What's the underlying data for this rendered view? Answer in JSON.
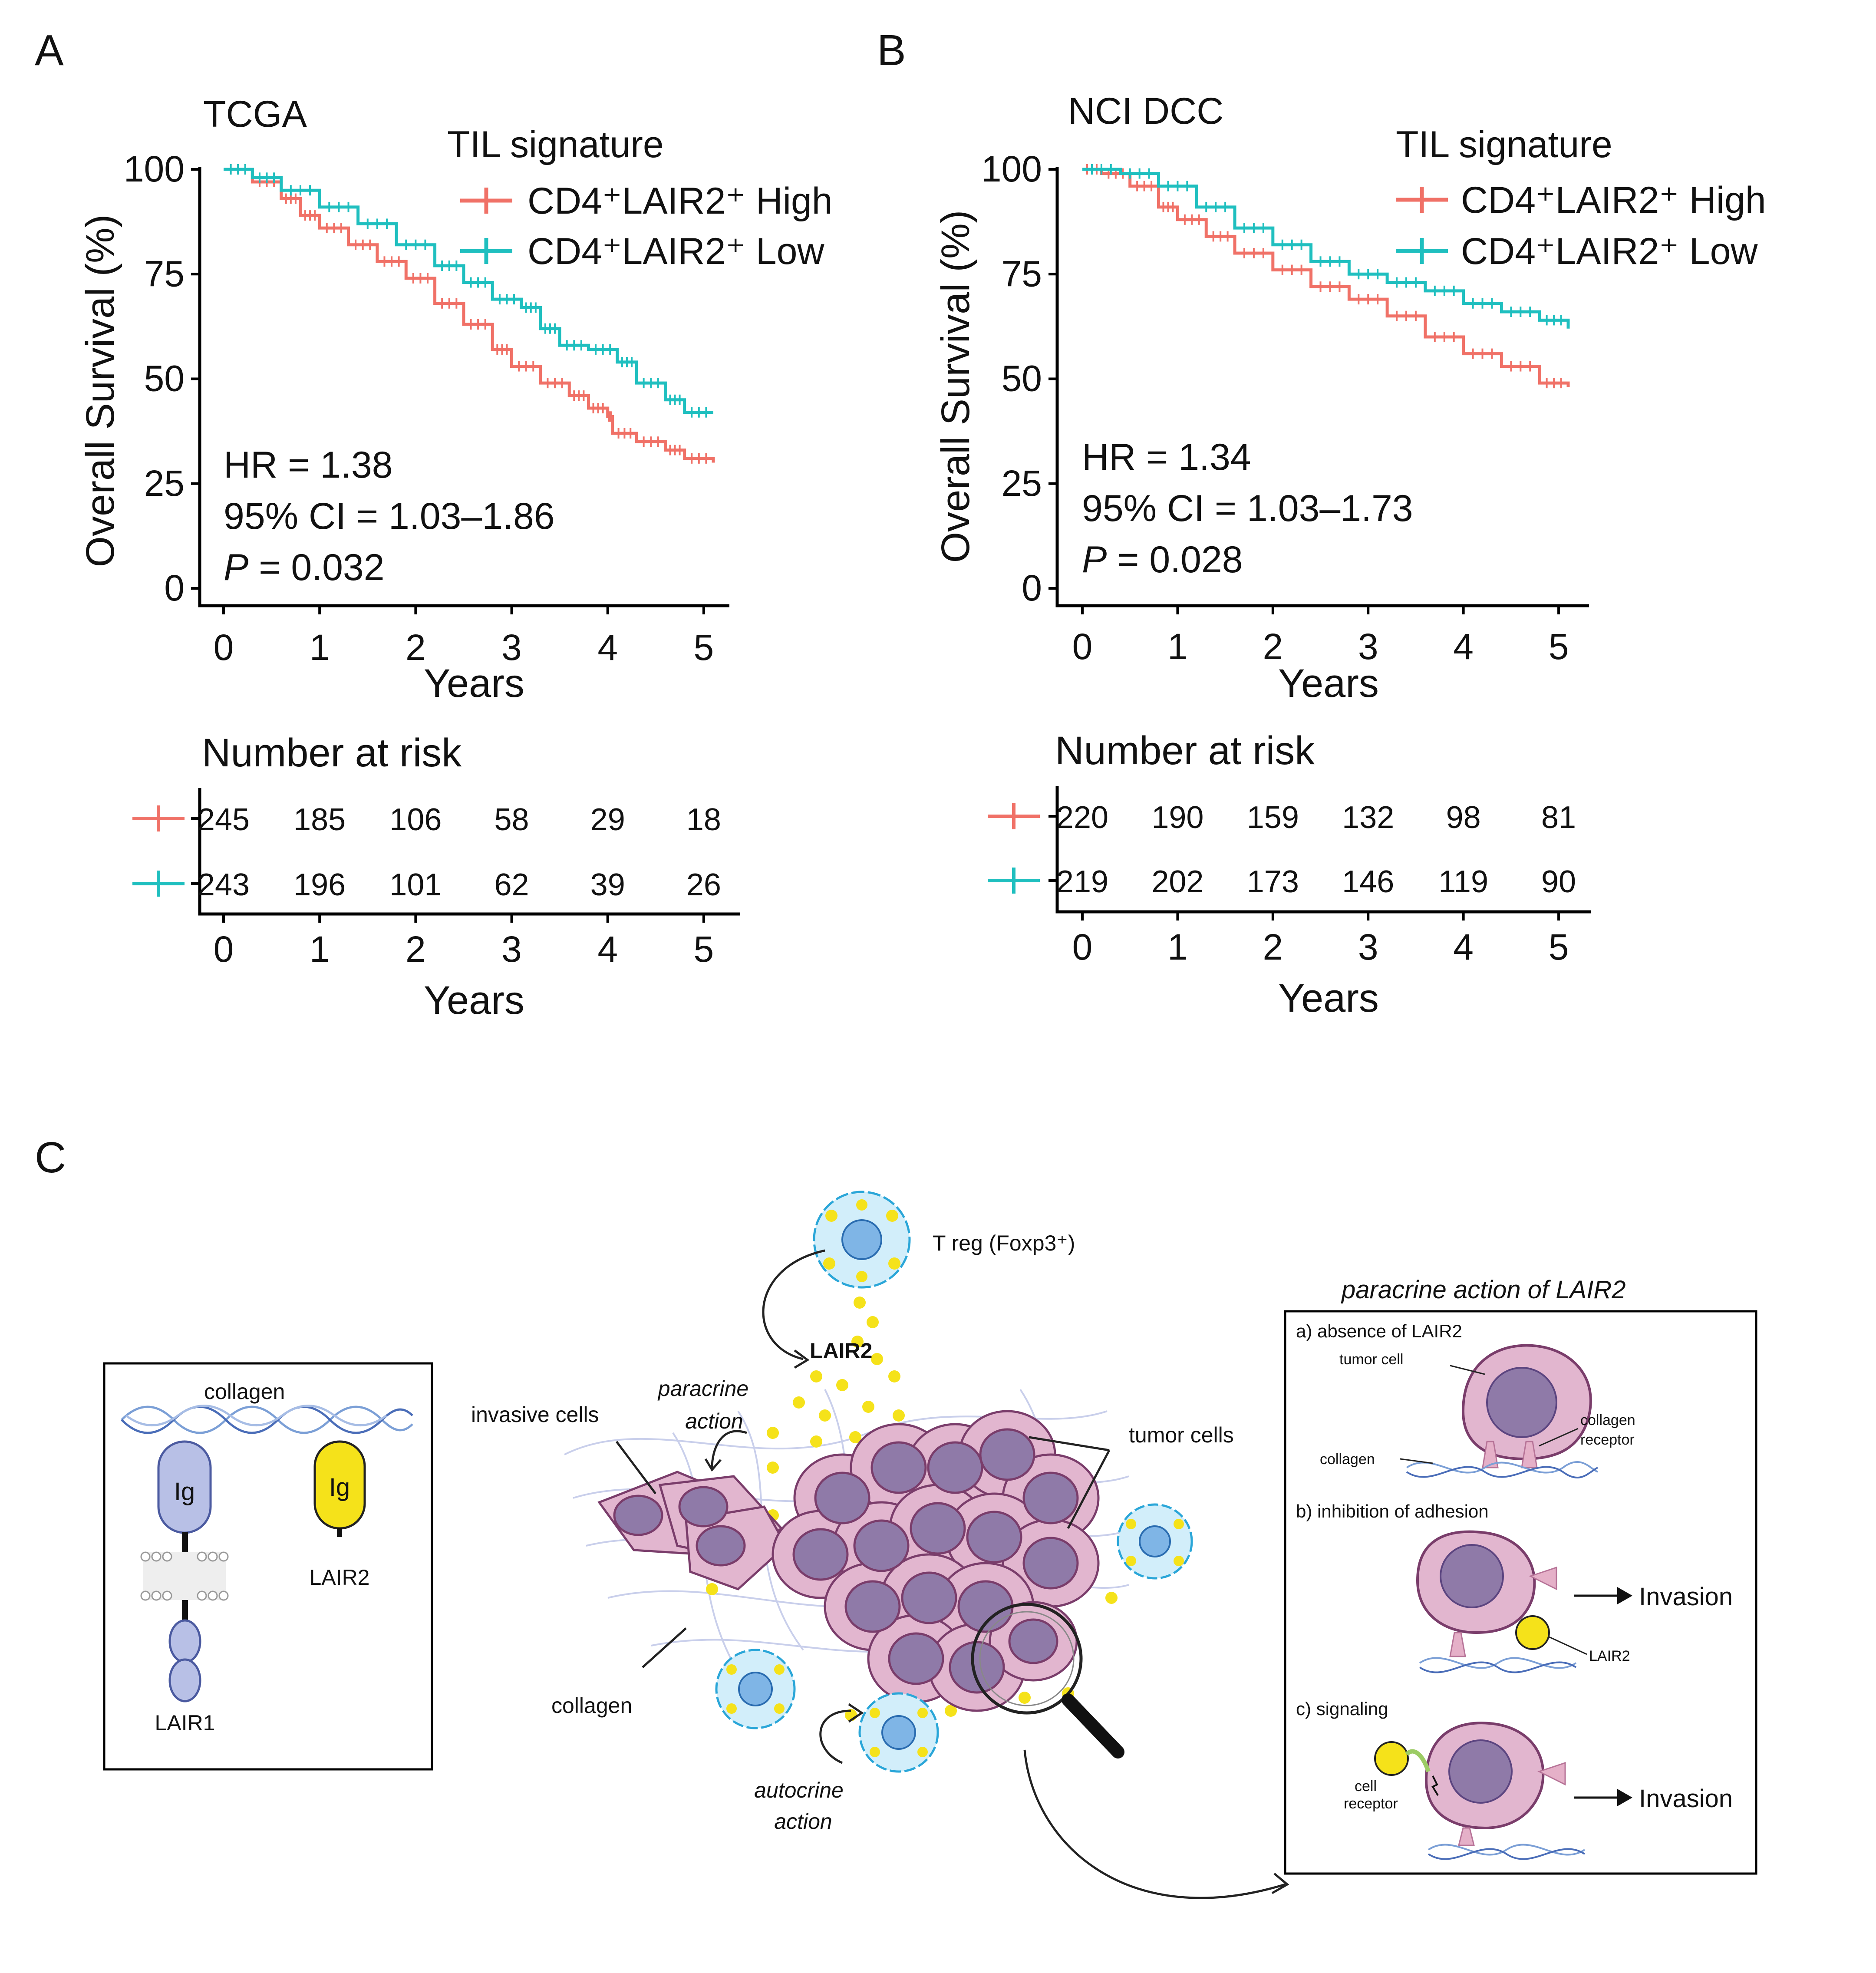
{
  "colors": {
    "high": "#f07167",
    "low": "#1fbfbf",
    "collagen": "#7b9fd6",
    "tumor_fill": "#e2b6cf",
    "tumor_nucleus": "#8f7aa8",
    "lair2": "#f5e21a",
    "treg": "#8ed3ef",
    "lair1": "#b8c0e6"
  },
  "chart_data": [
    {
      "type": "line",
      "panel": "A",
      "title": "TCGA",
      "xlabel": "Years",
      "ylabel": "Overall Survival (%)",
      "xlim": [
        0,
        5.1
      ],
      "ylim": [
        0,
        100
      ],
      "xticks": [
        "0",
        "1",
        "2",
        "3",
        "4",
        "5"
      ],
      "yticks": [
        "0",
        "25",
        "50",
        "75",
        "100"
      ],
      "legend_title": "TIL signature",
      "series": [
        {
          "name": "CD4⁺LAIR2⁺ High",
          "color": "high",
          "x": [
            0,
            0.3,
            0.6,
            0.8,
            1.0,
            1.3,
            1.6,
            1.9,
            2.2,
            2.5,
            2.8,
            3.0,
            3.3,
            3.6,
            3.8,
            4.0,
            4.05,
            4.3,
            4.6,
            4.8,
            5.1
          ],
          "y": [
            100,
            97,
            93,
            89,
            86,
            82,
            78,
            74,
            68,
            63,
            57,
            53,
            49,
            46,
            43,
            41,
            37,
            35,
            33,
            31,
            30
          ]
        },
        {
          "name": "CD4⁺LAIR2⁺ Low",
          "color": "low",
          "x": [
            0,
            0.3,
            0.6,
            1.0,
            1.4,
            1.8,
            2.2,
            2.5,
            2.8,
            3.1,
            3.3,
            3.5,
            3.8,
            4.1,
            4.3,
            4.6,
            4.8,
            5.1
          ],
          "y": [
            100,
            98,
            95,
            91,
            87,
            82,
            77,
            73,
            69,
            67,
            62,
            58,
            57,
            54,
            49,
            45,
            42,
            42
          ]
        }
      ],
      "annotations": {
        "hr": "HR = 1.38",
        "ci": "95% CI = 1.03–1.86",
        "p_label": "P",
        "p_value": " = 0.032"
      },
      "risk_table": {
        "title": "Number at risk",
        "xlabel": "Years",
        "times": [
          "0",
          "1",
          "2",
          "3",
          "4",
          "5"
        ],
        "rows": [
          {
            "group": "high",
            "values": [
              "245",
              "185",
              "106",
              "58",
              "29",
              "18"
            ]
          },
          {
            "group": "low",
            "values": [
              "243",
              "196",
              "101",
              "62",
              "39",
              "26"
            ]
          }
        ]
      }
    },
    {
      "type": "line",
      "panel": "B",
      "title": "NCI DCC",
      "xlabel": "Years",
      "ylabel": "Overall Survival (%)",
      "xlim": [
        0,
        5.1
      ],
      "ylim": [
        0,
        100
      ],
      "xticks": [
        "0",
        "1",
        "2",
        "3",
        "4",
        "5"
      ],
      "yticks": [
        "0",
        "25",
        "50",
        "75",
        "100"
      ],
      "legend_title": "TIL signature",
      "series": [
        {
          "name": "CD4⁺LAIR2⁺ High",
          "color": "high",
          "x": [
            0,
            0.2,
            0.5,
            0.8,
            1.0,
            1.3,
            1.6,
            2.0,
            2.4,
            2.8,
            3.2,
            3.6,
            4.0,
            4.4,
            4.8,
            5.1
          ],
          "y": [
            100,
            99,
            96,
            91,
            88,
            84,
            80,
            76,
            72,
            69,
            65,
            60,
            56,
            53,
            49,
            48
          ]
        },
        {
          "name": "CD4⁺LAIR2⁺ Low",
          "color": "low",
          "x": [
            0,
            0.4,
            0.8,
            1.2,
            1.6,
            2.0,
            2.4,
            2.8,
            3.2,
            3.6,
            4.0,
            4.4,
            4.8,
            5.1
          ],
          "y": [
            100,
            99,
            96,
            91,
            86,
            82,
            78,
            75,
            73,
            71,
            68,
            66,
            64,
            62
          ]
        }
      ],
      "annotations": {
        "hr": "HR = 1.34",
        "ci": "95% CI = 1.03–1.73",
        "p_label": "P",
        "p_value": " = 0.028"
      },
      "risk_table": {
        "title": "Number at risk",
        "xlabel": "Years",
        "times": [
          "0",
          "1",
          "2",
          "3",
          "4",
          "5"
        ],
        "rows": [
          {
            "group": "high",
            "values": [
              "220",
              "190",
              "159",
              "132",
              "98",
              "81"
            ]
          },
          {
            "group": "low",
            "values": [
              "219",
              "202",
              "173",
              "146",
              "119",
              "90"
            ]
          }
        ]
      }
    }
  ],
  "panel_labels": {
    "a": "A",
    "b": "B",
    "c": "C"
  },
  "diagram": {
    "left_box": {
      "collagen": "collagen",
      "ig1": "Ig",
      "ig2": "Ig",
      "lair1": "LAIR1",
      "lair2": "LAIR2"
    },
    "center": {
      "treg": "T reg (Foxp3⁺)",
      "lair2": "LAIR2",
      "paracrine_1": "paracrine",
      "paracrine_2": "action",
      "invasive": "invasive cells",
      "tumor": "tumor cells",
      "collagen": "collagen",
      "autocrine_1": "autocrine",
      "autocrine_2": "action"
    },
    "right_box": {
      "title": "paracrine action of LAIR2",
      "a": "a) absence of LAIR2",
      "tumor_cell": "tumor cell",
      "collagen_receptor_1": "collagen",
      "collagen_receptor_2": "receptor",
      "collagen": "collagen",
      "b": "b) inhibition of adhesion",
      "invasion_b": "Invasion",
      "lair2": "LAIR2",
      "c": "c) signaling",
      "cell_1": "cell",
      "cell_2": "receptor",
      "invasion_c": "Invasion"
    }
  }
}
